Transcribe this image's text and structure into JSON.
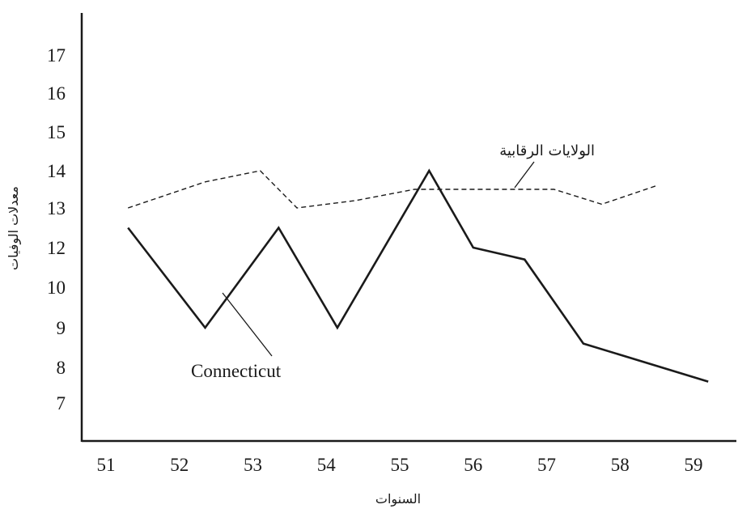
{
  "chart_data": {
    "type": "line",
    "title": "",
    "xlabel": "السنوات",
    "ylabel": "معدلات الوفيات",
    "x_ticks": [
      "51",
      "52",
      "53",
      "54",
      "55",
      "56",
      "57",
      "58",
      "59"
    ],
    "y_ticks": [
      "7",
      "8",
      "9",
      "10",
      "12",
      "13",
      "14",
      "15",
      "16",
      "17"
    ],
    "grid": false,
    "series": [
      {
        "name": "Connecticut",
        "style": "solid",
        "color": "#1a1a1a",
        "x": [
          51.3,
          52.35,
          53.35,
          54.15,
          55.4,
          56.0,
          56.7,
          57.5,
          59.2
        ],
        "y": [
          12.5,
          9.0,
          12.5,
          9.0,
          14.0,
          12.0,
          11.4,
          8.6,
          7.6
        ]
      },
      {
        "name": "الولايات الرقابية",
        "style": "dashed",
        "color": "#1a1a1a",
        "x": [
          51.3,
          52.35,
          53.1,
          53.6,
          54.4,
          55.2,
          55.5,
          56.2,
          56.85,
          57.1,
          57.75,
          58.5
        ],
        "y": [
          13.0,
          13.7,
          14.0,
          13.0,
          13.2,
          13.5,
          13.5,
          13.5,
          13.5,
          13.5,
          13.1,
          13.6
        ]
      }
    ],
    "annotations": [
      {
        "text": "Connecticut",
        "series": "Connecticut"
      },
      {
        "text": "الولايات الرقابية",
        "series": "الولايات الرقابية"
      }
    ]
  }
}
